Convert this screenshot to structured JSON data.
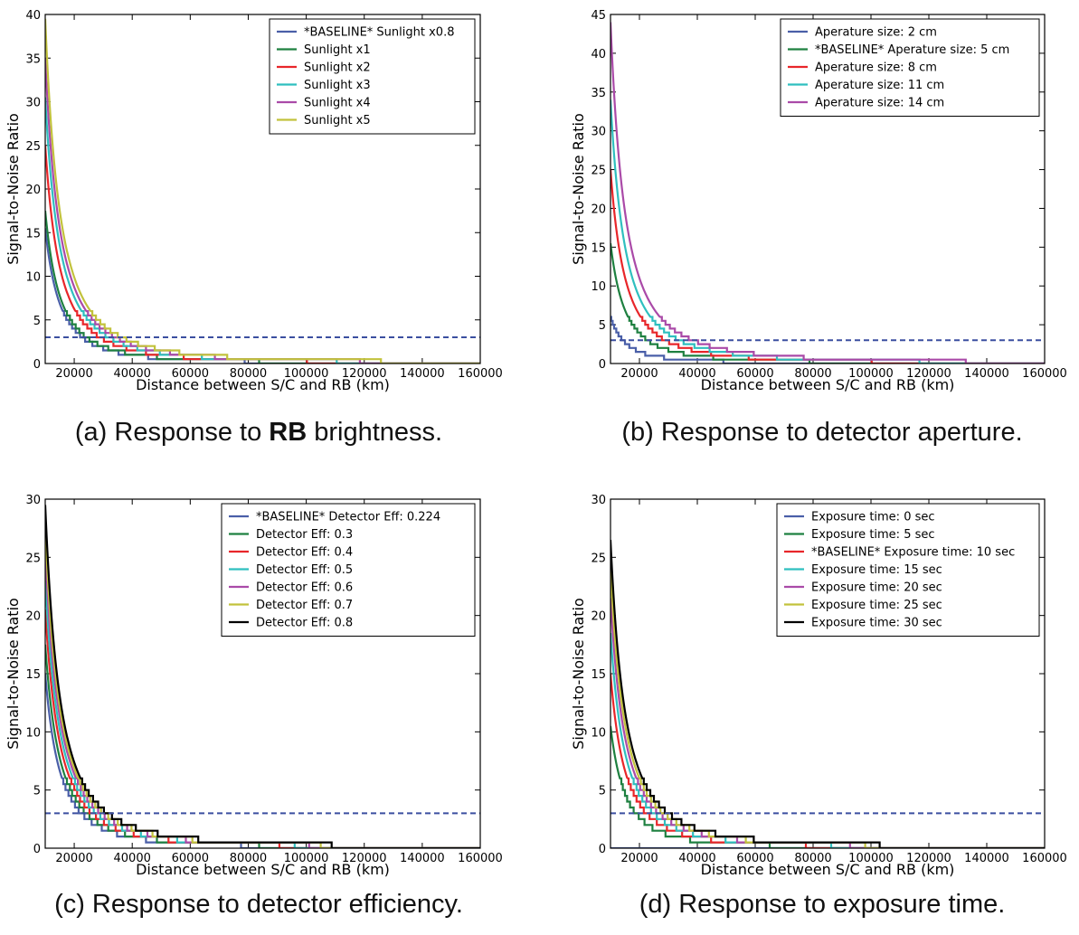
{
  "captions": [
    {
      "prefix": "(a) Response to ",
      "bold": "RB",
      "suffix": " brightness."
    },
    {
      "prefix": "(b) Response to detector aperture.",
      "bold": "",
      "suffix": ""
    },
    {
      "prefix": "(c) Response to detector efficiency.",
      "bold": "",
      "suffix": ""
    },
    {
      "prefix": "(d) Response to exposure time.",
      "bold": "",
      "suffix": ""
    }
  ],
  "chart_data": [
    {
      "type": "line",
      "xlabel": "Distance between S/C and RB (km)",
      "ylabel": "Signal-to-Noise Ratio",
      "xlim": [
        10000,
        160000
      ],
      "ylim": [
        0,
        40
      ],
      "xticks": [
        20000,
        40000,
        60000,
        80000,
        100000,
        120000,
        140000,
        160000
      ],
      "yticks": [
        0,
        5,
        10,
        15,
        20,
        25,
        30,
        35,
        40
      ],
      "legend_position": "top-right",
      "threshold": 3,
      "series": [
        {
          "name": "*BASELINE* Sunlight x0.8",
          "color": "#4a5fa8",
          "snr_at_10000km": 15.5
        },
        {
          "name": "Sunlight x1",
          "color": "#1e8040",
          "snr_at_10000km": 17.5
        },
        {
          "name": "Sunlight x2",
          "color": "#e8262a",
          "snr_at_10000km": 25
        },
        {
          "name": "Sunlight x3",
          "color": "#2fbfbf",
          "snr_at_10000km": 30.5
        },
        {
          "name": "Sunlight x4",
          "color": "#aa4aa8",
          "snr_at_10000km": 35
        },
        {
          "name": "Sunlight x5",
          "color": "#c2c23c",
          "snr_at_10000km": 39.5
        }
      ]
    },
    {
      "type": "line",
      "xlabel": "Distance between S/C and RB (km)",
      "ylabel": "Signal-to-Noise Ratio",
      "xlim": [
        10000,
        160000
      ],
      "ylim": [
        0,
        45
      ],
      "xticks": [
        20000,
        40000,
        60000,
        80000,
        100000,
        120000,
        140000,
        160000
      ],
      "yticks": [
        0,
        5,
        10,
        15,
        20,
        25,
        30,
        35,
        40,
        45
      ],
      "legend_position": "top-right",
      "threshold": 3,
      "series": [
        {
          "name": "Aperature size: 2 cm",
          "color": "#4a5fa8",
          "snr_at_10000km": 6
        },
        {
          "name": "*BASELINE* Aperature size: 5 cm",
          "color": "#1e8040",
          "snr_at_10000km": 15.5
        },
        {
          "name": "Aperature size: 8 cm",
          "color": "#e8262a",
          "snr_at_10000km": 25
        },
        {
          "name": "Aperature size: 11 cm",
          "color": "#2fbfbf",
          "snr_at_10000km": 34
        },
        {
          "name": "Aperature size: 14 cm",
          "color": "#aa4aa8",
          "snr_at_10000km": 44
        }
      ]
    },
    {
      "type": "line",
      "xlabel": "Distance between S/C and RB (km)",
      "ylabel": "Signal-to-Noise Ratio",
      "xlim": [
        10000,
        160000
      ],
      "ylim": [
        0,
        30
      ],
      "xticks": [
        20000,
        40000,
        60000,
        80000,
        100000,
        120000,
        140000,
        160000
      ],
      "yticks": [
        0,
        5,
        10,
        15,
        20,
        25,
        30
      ],
      "legend_position": "top-right",
      "threshold": 3,
      "series": [
        {
          "name": "*BASELINE* Detector Eff: 0.224",
          "color": "#4a5fa8",
          "snr_at_10000km": 15
        },
        {
          "name": "Detector Eff: 0.3",
          "color": "#1e8040",
          "snr_at_10000km": 17.5
        },
        {
          "name": "Detector Eff: 0.4",
          "color": "#e8262a",
          "snr_at_10000km": 20.5
        },
        {
          "name": "Detector Eff: 0.5",
          "color": "#2fbfbf",
          "snr_at_10000km": 23
        },
        {
          "name": "Detector Eff: 0.6",
          "color": "#aa4aa8",
          "snr_at_10000km": 25.5
        },
        {
          "name": "Detector Eff: 0.7",
          "color": "#c2c23c",
          "snr_at_10000km": 27.5
        },
        {
          "name": "Detector Eff: 0.8",
          "color": "#000000",
          "snr_at_10000km": 29.5
        }
      ]
    },
    {
      "type": "line",
      "xlabel": "Distance between S/C and RB (km)",
      "ylabel": "Signal-to-Noise Ratio",
      "xlim": [
        10000,
        160000
      ],
      "ylim": [
        0,
        30
      ],
      "xticks": [
        20000,
        40000,
        60000,
        80000,
        100000,
        120000,
        140000,
        160000
      ],
      "yticks": [
        0,
        5,
        10,
        15,
        20,
        25,
        30
      ],
      "legend_position": "top-right",
      "threshold": 3,
      "series": [
        {
          "name": "Exposure time: 0 sec",
          "color": "#4a5fa8",
          "snr_at_10000km": 0
        },
        {
          "name": "Exposure time: 5 sec",
          "color": "#1e8040",
          "snr_at_10000km": 10.5
        },
        {
          "name": "*BASELINE* Exposure time: 10 sec",
          "color": "#e8262a",
          "snr_at_10000km": 15
        },
        {
          "name": "Exposure time: 15 sec",
          "color": "#2fbfbf",
          "snr_at_10000km": 18.5
        },
        {
          "name": "Exposure time: 20 sec",
          "color": "#aa4aa8",
          "snr_at_10000km": 21.5
        },
        {
          "name": "Exposure time: 25 sec",
          "color": "#c2c23c",
          "snr_at_10000km": 24
        },
        {
          "name": "Exposure time: 30 sec",
          "color": "#000000",
          "snr_at_10000km": 26.5
        }
      ]
    }
  ]
}
